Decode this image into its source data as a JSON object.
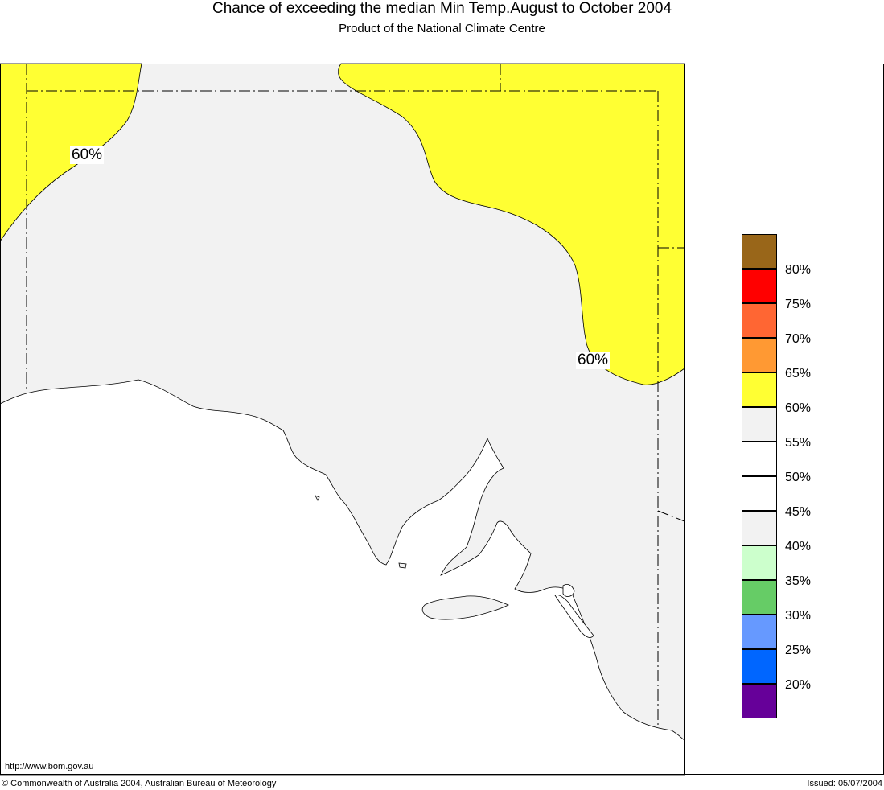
{
  "header": {
    "title": "Chance of exceeding the median Min Temp.August to October 2004",
    "subtitle": "Product of the National Climate Centre"
  },
  "map": {
    "contour_labels": [
      "60%",
      "60%"
    ],
    "colors": {
      "exceed_60": "#ffff33",
      "band_40_60": "#f2f2f2",
      "ocean": "#ffffff",
      "border_line": "#000000"
    }
  },
  "legend": {
    "labels": [
      "80%",
      "75%",
      "70%",
      "65%",
      "60%",
      "55%",
      "50%",
      "45%",
      "40%",
      "35%",
      "30%",
      "25%",
      "20%"
    ],
    "swatches": [
      "#996619",
      "#ff0000",
      "#ff6633",
      "#ff9933",
      "#ffff33",
      "#f2f2f2",
      "#ffffff",
      "#ffffff",
      "#f2f2f2",
      "#ccffcc",
      "#66cc66",
      "#6699ff",
      "#0066ff",
      "#660099"
    ]
  },
  "footer": {
    "url": "http://www.bom.gov.au",
    "copyright": "© Commonwealth of Australia 2004, Australian Bureau of Meteorology",
    "issued": "Issued: 05/07/2004"
  }
}
